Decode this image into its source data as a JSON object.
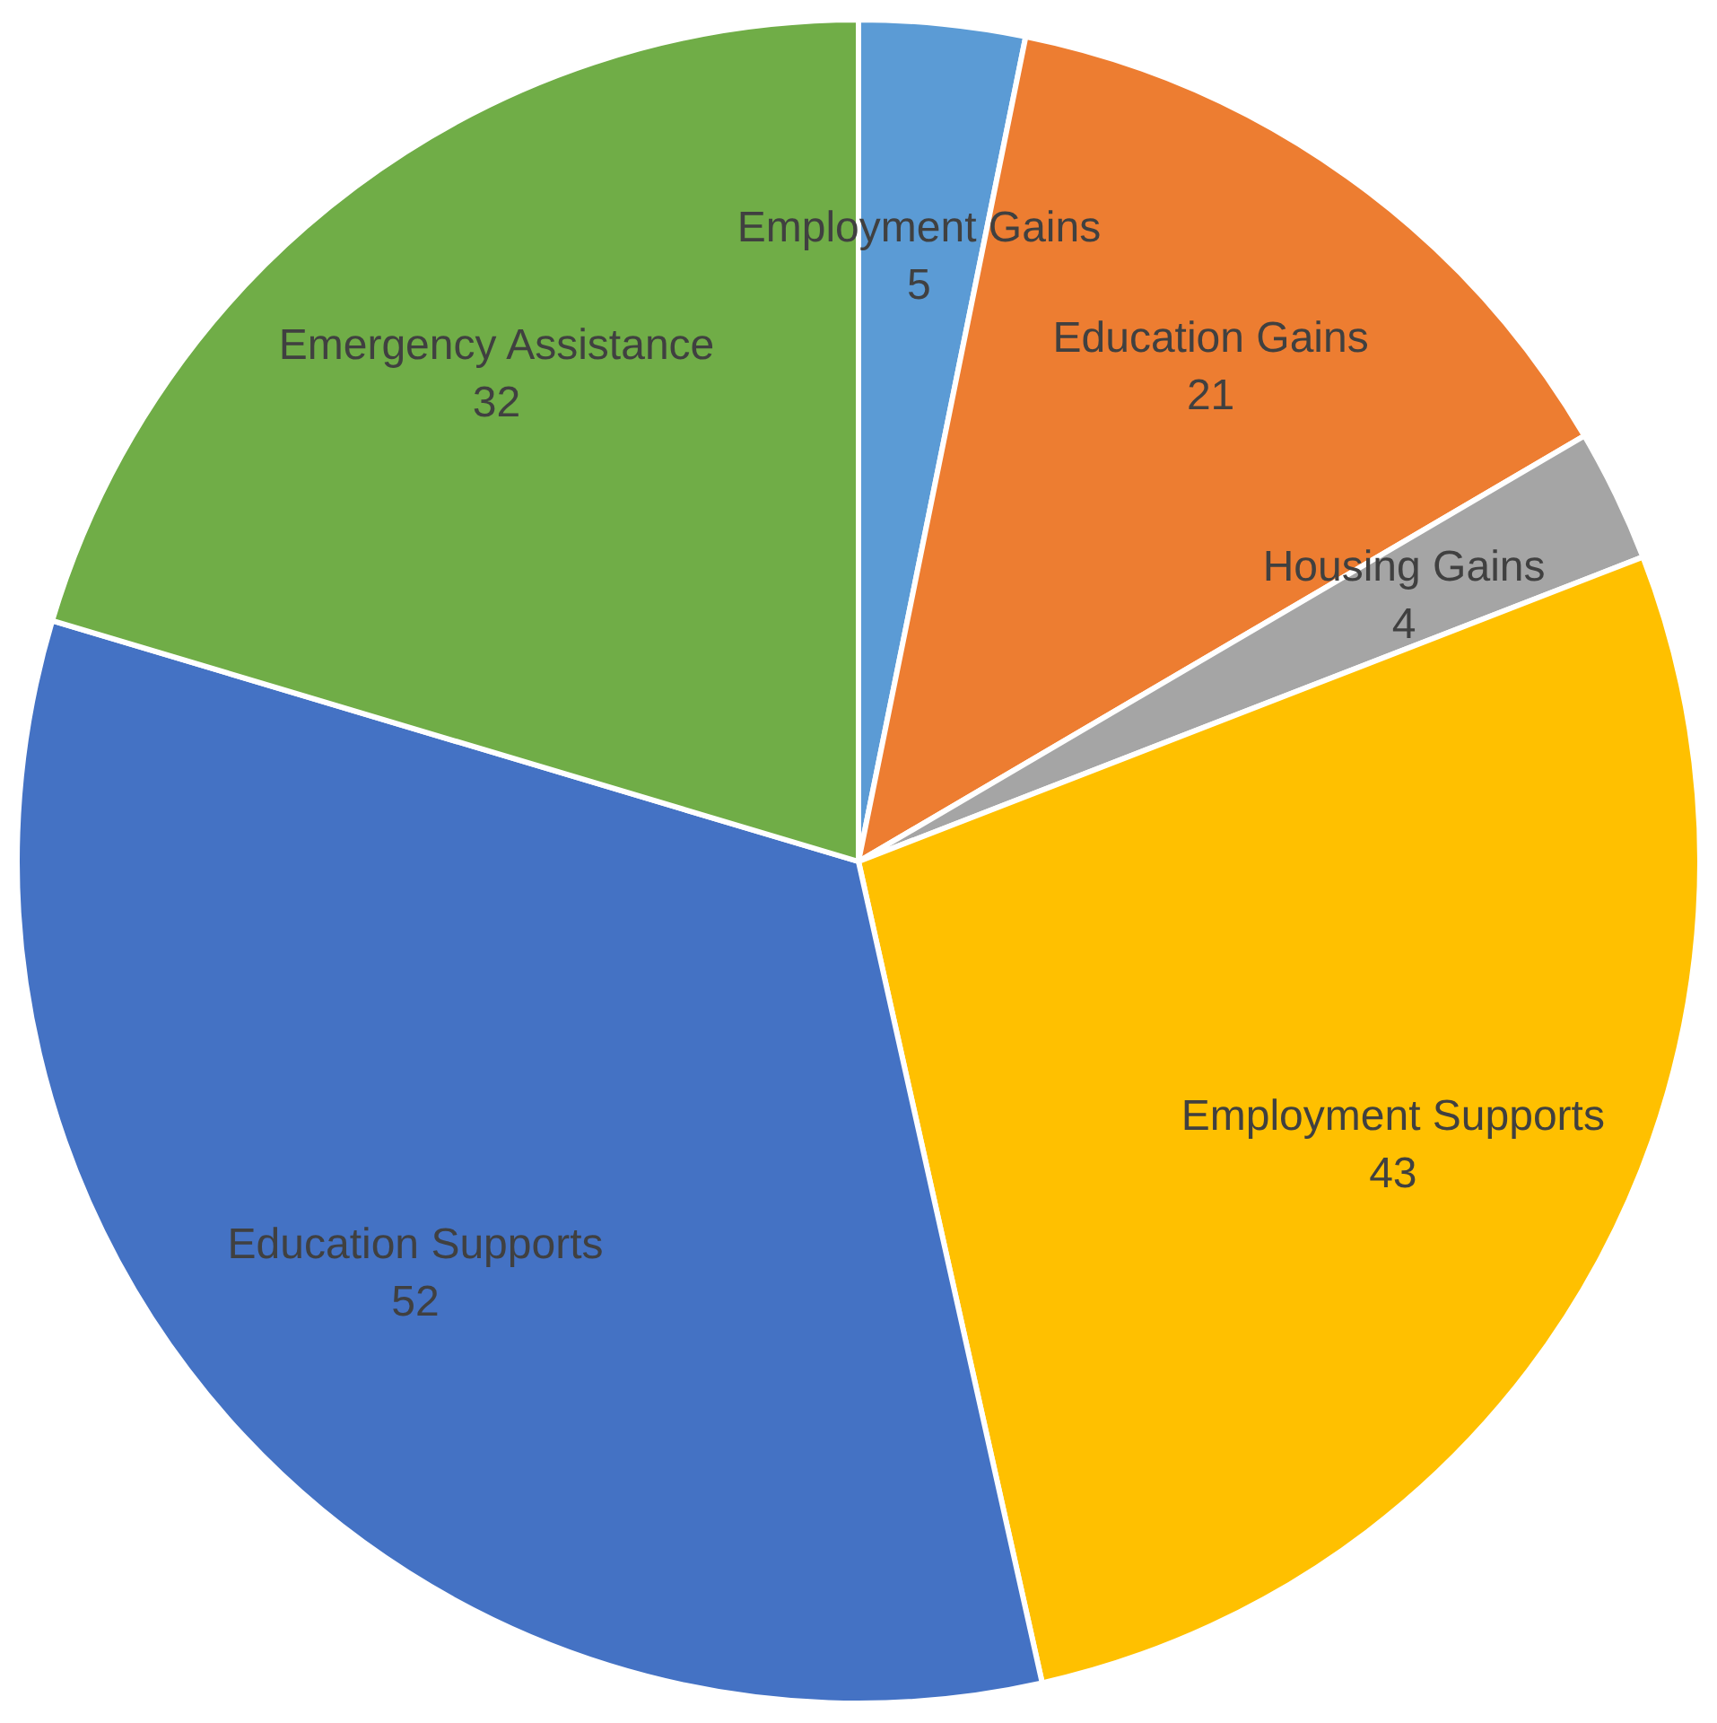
{
  "chart_data": {
    "type": "pie",
    "categories": [
      "Employment Gains",
      "Education Gains",
      "Housing Gains",
      "Employment Supports",
      "Education Supports",
      "Emergency Assistance"
    ],
    "values": [
      5,
      21,
      4,
      43,
      52,
      32
    ],
    "colors": [
      "#5b9bd5",
      "#ed7d31",
      "#a5a5a5",
      "#ffc000",
      "#4472c4",
      "#70ad47"
    ],
    "data_labels": true,
    "legend": false
  }
}
